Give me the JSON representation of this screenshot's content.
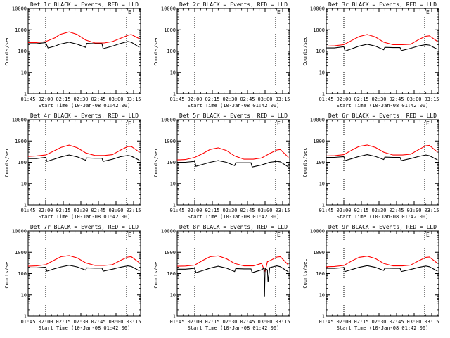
{
  "figure": {
    "x_tick_labels": [
      "01:45",
      "02:00",
      "02:15",
      "02:30",
      "02:45",
      "03:00",
      "03:15"
    ],
    "y_tick_labels": [
      "1",
      "10",
      "100",
      "1000",
      "10000"
    ],
    "legend_marker": "E"
  },
  "chart_data": [
    {
      "type": "line",
      "title": "Det 1r BLACK = Events, RED = LLD",
      "xlabel": "Start Time (10-Jan-08 01:42:00)",
      "ylabel": "Counts/sec",
      "x_unit": "minutes since 01:42:00",
      "xlim": [
        3,
        99
      ],
      "ylim": [
        1,
        10000
      ],
      "yscale": "log",
      "dotted_lines_x": [
        18,
        87
      ],
      "series": [
        {
          "name": "LLD",
          "color": "#ff0000",
          "x": [
            3,
            10,
            18,
            26,
            30,
            38,
            45,
            52,
            60,
            68,
            75,
            82,
            88,
            91,
            98
          ],
          "y": [
            250,
            250,
            280,
            420,
            600,
            800,
            600,
            330,
            240,
            240,
            280,
            400,
            550,
            600,
            380
          ]
        },
        {
          "name": "Events",
          "color": "#000000",
          "x": [
            3,
            10,
            18,
            20,
            26,
            30,
            38,
            45,
            52,
            53,
            60,
            66,
            67,
            75,
            82,
            88,
            91,
            98
          ],
          "y": [
            220,
            220,
            250,
            140,
            170,
            210,
            260,
            210,
            150,
            230,
            220,
            220,
            130,
            170,
            230,
            280,
            260,
            150
          ]
        }
      ]
    },
    {
      "type": "line",
      "title": "Det 2r BLACK = Events, RED = LLD",
      "xlabel": "Start Time (10-Jan-08 01:42:00)",
      "ylabel": "Counts/sec",
      "x_unit": "minutes since 01:42:00",
      "xlim": [
        3,
        99
      ],
      "ylim": [
        1,
        10000
      ],
      "yscale": "log",
      "dotted_lines_x": [
        18,
        87
      ],
      "series": []
    },
    {
      "type": "line",
      "title": "Det 3r BLACK = Events, RED = LLD",
      "xlabel": "Start Time (10-Jan-08 01:42:00)",
      "ylabel": "Counts/sec",
      "x_unit": "minutes since 01:42:00",
      "xlim": [
        3,
        99
      ],
      "ylim": [
        1,
        10000
      ],
      "yscale": "log",
      "dotted_lines_x": [
        18,
        87
      ],
      "series": [
        {
          "name": "LLD",
          "color": "#ff0000",
          "x": [
            3,
            10,
            18,
            25,
            31,
            38,
            45,
            52,
            60,
            68,
            75,
            82,
            88,
            91,
            98
          ],
          "y": [
            170,
            175,
            200,
            320,
            480,
            600,
            460,
            260,
            200,
            200,
            210,
            350,
            500,
            520,
            280
          ]
        },
        {
          "name": "Events",
          "color": "#000000",
          "x": [
            3,
            10,
            18,
            19,
            25,
            31,
            38,
            45,
            52,
            53,
            60,
            66,
            67,
            75,
            82,
            88,
            91,
            98
          ],
          "y": [
            140,
            140,
            160,
            100,
            130,
            170,
            210,
            170,
            115,
            150,
            145,
            145,
            105,
            135,
            175,
            200,
            190,
            120
          ]
        }
      ]
    },
    {
      "type": "line",
      "title": "Det 4r BLACK = Events, RED = LLD",
      "xlabel": "Start Time (10-Jan-08 01:42:00)",
      "ylabel": "Counts/sec",
      "x_unit": "minutes since 01:42:00",
      "xlim": [
        3,
        99
      ],
      "ylim": [
        1,
        10000
      ],
      "yscale": "log",
      "dotted_lines_x": [
        18,
        87
      ],
      "series": [
        {
          "name": "LLD",
          "color": "#ff0000",
          "x": [
            3,
            10,
            18,
            25,
            31,
            38,
            45,
            52,
            60,
            68,
            75,
            82,
            88,
            91,
            98
          ],
          "y": [
            190,
            200,
            220,
            340,
            500,
            640,
            480,
            280,
            210,
            210,
            230,
            380,
            550,
            560,
            300
          ]
        },
        {
          "name": "Events",
          "color": "#000000",
          "x": [
            3,
            10,
            18,
            19,
            25,
            31,
            38,
            45,
            52,
            53,
            60,
            66,
            67,
            75,
            82,
            88,
            91,
            98
          ],
          "y": [
            150,
            150,
            170,
            110,
            140,
            180,
            220,
            180,
            125,
            160,
            155,
            155,
            110,
            140,
            185,
            210,
            195,
            125
          ]
        }
      ]
    },
    {
      "type": "line",
      "title": "Det 5r BLACK = Events, RED = LLD",
      "xlabel": "Start Time (10-Jan-08 01:42:00)",
      "ylabel": "Counts/sec",
      "x_unit": "minutes since 01:42:00",
      "xlim": [
        3,
        99
      ],
      "ylim": [
        1,
        10000
      ],
      "yscale": "log",
      "dotted_lines_x": [
        18,
        87
      ],
      "series": [
        {
          "name": "LLD",
          "color": "#ff0000",
          "x": [
            3,
            10,
            18,
            25,
            31,
            38,
            45,
            52,
            60,
            68,
            75,
            82,
            88,
            91,
            98
          ],
          "y": [
            130,
            135,
            170,
            260,
            400,
            480,
            360,
            200,
            140,
            140,
            160,
            260,
            380,
            400,
            170
          ]
        },
        {
          "name": "Events",
          "color": "#000000",
          "x": [
            3,
            10,
            18,
            19,
            25,
            31,
            38,
            45,
            52,
            53,
            60,
            66,
            67,
            75,
            82,
            88,
            91,
            98
          ],
          "y": [
            100,
            100,
            110,
            65,
            80,
            100,
            120,
            100,
            70,
            95,
            95,
            95,
            60,
            75,
            100,
            110,
            105,
            60
          ]
        }
      ]
    },
    {
      "type": "line",
      "title": "Det 6r BLACK = Events, RED = LLD",
      "xlabel": "Start Time (10-Jan-08 01:42:00)",
      "ylabel": "Counts/sec",
      "x_unit": "minutes since 01:42:00",
      "xlim": [
        3,
        99
      ],
      "ylim": [
        1,
        10000
      ],
      "yscale": "log",
      "dotted_lines_x": [
        18,
        87
      ],
      "series": [
        {
          "name": "LLD",
          "color": "#ff0000",
          "x": [
            3,
            10,
            18,
            25,
            31,
            38,
            45,
            52,
            60,
            68,
            75,
            82,
            88,
            91,
            98
          ],
          "y": [
            200,
            205,
            230,
            380,
            560,
            650,
            500,
            300,
            220,
            220,
            240,
            400,
            600,
            620,
            300
          ]
        },
        {
          "name": "Events",
          "color": "#000000",
          "x": [
            3,
            10,
            18,
            19,
            25,
            31,
            38,
            45,
            52,
            53,
            60,
            66,
            67,
            75,
            82,
            88,
            91,
            98
          ],
          "y": [
            170,
            170,
            185,
            120,
            150,
            190,
            230,
            190,
            135,
            175,
            170,
            170,
            120,
            150,
            190,
            220,
            205,
            130
          ]
        }
      ]
    },
    {
      "type": "line",
      "title": "Det 7r BLACK = Events, RED = LLD",
      "xlabel": "Start Time (10-Jan-08 01:42:00)",
      "ylabel": "Counts/sec",
      "x_unit": "minutes since 01:42:00",
      "xlim": [
        3,
        99
      ],
      "ylim": [
        1,
        10000
      ],
      "yscale": "log",
      "dotted_lines_x": [
        18,
        87
      ],
      "series": [
        {
          "name": "LLD",
          "color": "#ff0000",
          "x": [
            3,
            10,
            18,
            25,
            31,
            38,
            45,
            52,
            60,
            68,
            75,
            82,
            88,
            91,
            98
          ],
          "y": [
            220,
            230,
            260,
            420,
            620,
            700,
            540,
            320,
            240,
            240,
            260,
            420,
            600,
            620,
            320
          ]
        },
        {
          "name": "Events",
          "color": "#000000",
          "x": [
            3,
            10,
            18,
            19,
            25,
            31,
            38,
            45,
            52,
            53,
            60,
            66,
            67,
            75,
            82,
            88,
            91,
            98
          ],
          "y": [
            185,
            185,
            200,
            130,
            165,
            205,
            245,
            205,
            145,
            185,
            180,
            180,
            130,
            160,
            200,
            230,
            215,
            135
          ]
        }
      ]
    },
    {
      "type": "line",
      "title": "Det 8r BLACK = Events, RED = LLD",
      "xlabel": "Start Time (10-Jan-08 01:42:00)",
      "ylabel": "Counts/sec",
      "x_unit": "minutes since 01:42:00",
      "xlim": [
        3,
        99
      ],
      "ylim": [
        1,
        10000
      ],
      "yscale": "log",
      "dotted_lines_x": [
        18,
        87
      ],
      "series": [
        {
          "name": "LLD",
          "color": "#ff0000",
          "x": [
            3,
            10,
            18,
            25,
            31,
            38,
            45,
            52,
            60,
            68,
            75,
            78,
            80,
            82,
            88,
            91,
            98
          ],
          "y": [
            220,
            225,
            250,
            420,
            620,
            680,
            500,
            300,
            230,
            230,
            300,
            120,
            360,
            400,
            600,
            620,
            250
          ]
        },
        {
          "name": "Events",
          "color": "#000000",
          "x": [
            3,
            10,
            18,
            19,
            25,
            31,
            38,
            45,
            52,
            53,
            60,
            66,
            67,
            75,
            77,
            77.5,
            78,
            80,
            80.5,
            82,
            88,
            91,
            98
          ],
          "y": [
            160,
            160,
            175,
            110,
            140,
            180,
            220,
            180,
            125,
            170,
            165,
            165,
            110,
            150,
            180,
            8,
            170,
            150,
            40,
            190,
            230,
            210,
            120
          ]
        }
      ]
    },
    {
      "type": "line",
      "title": "Det 9r BLACK = Events, RED = LLD",
      "xlabel": "Start Time (10-Jan-08 01:42:00)",
      "ylabel": "Counts/sec",
      "x_unit": "minutes since 01:42:00",
      "xlim": [
        3,
        99
      ],
      "ylim": [
        1,
        10000
      ],
      "yscale": "log",
      "dotted_lines_x": [
        18,
        87
      ],
      "series": [
        {
          "name": "LLD",
          "color": "#ff0000",
          "x": [
            3,
            10,
            18,
            25,
            31,
            38,
            45,
            52,
            60,
            68,
            75,
            82,
            88,
            91,
            98
          ],
          "y": [
            210,
            215,
            240,
            400,
            580,
            660,
            510,
            300,
            230,
            230,
            250,
            400,
            580,
            600,
            300
          ]
        },
        {
          "name": "Events",
          "color": "#000000",
          "x": [
            3,
            10,
            18,
            19,
            25,
            31,
            38,
            45,
            52,
            53,
            60,
            66,
            67,
            75,
            82,
            88,
            91,
            98
          ],
          "y": [
            175,
            175,
            190,
            125,
            155,
            195,
            235,
            195,
            140,
            180,
            175,
            175,
            125,
            155,
            195,
            225,
            210,
            130
          ]
        }
      ]
    }
  ]
}
